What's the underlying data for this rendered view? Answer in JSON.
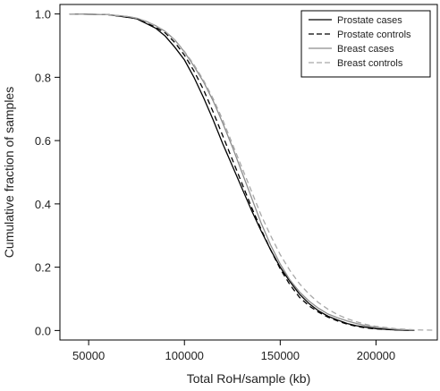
{
  "chart_data": {
    "type": "line",
    "xlabel": "Total RoH/sample (kb)",
    "ylabel": "Cumulative fraction of samples",
    "xlim": [
      35000,
      232000
    ],
    "ylim": [
      -0.03,
      1.03
    ],
    "x_ticks": [
      50000,
      100000,
      150000,
      200000
    ],
    "x_tick_labels": [
      "50000",
      "100000",
      "150000",
      "200000"
    ],
    "y_ticks": [
      0.0,
      0.2,
      0.4,
      0.6,
      0.8,
      1.0
    ],
    "y_tick_labels": [
      "0.0",
      "0.2",
      "0.4",
      "0.6",
      "0.8",
      "1.0"
    ],
    "grid": false,
    "legend_position": "top-right",
    "series": [
      {
        "name": "Prostate cases",
        "color": "#000000",
        "dash": "solid",
        "points": [
          [
            40000,
            1.0
          ],
          [
            60000,
            0.998
          ],
          [
            70000,
            0.99
          ],
          [
            75000,
            0.985
          ],
          [
            80000,
            0.97
          ],
          [
            85000,
            0.955
          ],
          [
            90000,
            0.93
          ],
          [
            95000,
            0.895
          ],
          [
            100000,
            0.855
          ],
          [
            105000,
            0.8
          ],
          [
            110000,
            0.735
          ],
          [
            115000,
            0.665
          ],
          [
            120000,
            0.59
          ],
          [
            125000,
            0.52
          ],
          [
            130000,
            0.45
          ],
          [
            135000,
            0.38
          ],
          [
            140000,
            0.315
          ],
          [
            145000,
            0.255
          ],
          [
            150000,
            0.2
          ],
          [
            155000,
            0.155
          ],
          [
            160000,
            0.115
          ],
          [
            165000,
            0.085
          ],
          [
            170000,
            0.062
          ],
          [
            175000,
            0.045
          ],
          [
            180000,
            0.033
          ],
          [
            185000,
            0.022
          ],
          [
            190000,
            0.015
          ],
          [
            195000,
            0.01
          ],
          [
            200000,
            0.006
          ],
          [
            210000,
            0.002
          ],
          [
            220000,
            0.0
          ]
        ]
      },
      {
        "name": "Prostate controls",
        "color": "#000000",
        "dash": "dashed",
        "points": [
          [
            40000,
            1.0
          ],
          [
            60000,
            0.998
          ],
          [
            70000,
            0.99
          ],
          [
            75000,
            0.985
          ],
          [
            80000,
            0.972
          ],
          [
            85000,
            0.958
          ],
          [
            90000,
            0.94
          ],
          [
            95000,
            0.91
          ],
          [
            100000,
            0.87
          ],
          [
            105000,
            0.82
          ],
          [
            110000,
            0.76
          ],
          [
            115000,
            0.69
          ],
          [
            120000,
            0.615
          ],
          [
            125000,
            0.54
          ],
          [
            130000,
            0.465
          ],
          [
            135000,
            0.39
          ],
          [
            140000,
            0.32
          ],
          [
            145000,
            0.255
          ],
          [
            150000,
            0.195
          ],
          [
            155000,
            0.145
          ],
          [
            160000,
            0.105
          ],
          [
            165000,
            0.078
          ],
          [
            170000,
            0.058
          ],
          [
            175000,
            0.042
          ],
          [
            180000,
            0.03
          ],
          [
            185000,
            0.02
          ],
          [
            190000,
            0.013
          ],
          [
            195000,
            0.008
          ],
          [
            200000,
            0.005
          ],
          [
            210000,
            0.002
          ],
          [
            220000,
            0.0
          ]
        ]
      },
      {
        "name": "Breast cases",
        "color": "#8c8c8c",
        "dash": "solid",
        "points": [
          [
            40000,
            1.0
          ],
          [
            60000,
            0.998
          ],
          [
            70000,
            0.992
          ],
          [
            75000,
            0.987
          ],
          [
            80000,
            0.977
          ],
          [
            85000,
            0.963
          ],
          [
            90000,
            0.945
          ],
          [
            95000,
            0.918
          ],
          [
            100000,
            0.88
          ],
          [
            105000,
            0.835
          ],
          [
            110000,
            0.785
          ],
          [
            115000,
            0.725
          ],
          [
            120000,
            0.655
          ],
          [
            125000,
            0.58
          ],
          [
            130000,
            0.5
          ],
          [
            135000,
            0.42
          ],
          [
            140000,
            0.34
          ],
          [
            145000,
            0.27
          ],
          [
            150000,
            0.21
          ],
          [
            155000,
            0.16
          ],
          [
            160000,
            0.122
          ],
          [
            165000,
            0.093
          ],
          [
            170000,
            0.07
          ],
          [
            175000,
            0.052
          ],
          [
            180000,
            0.04
          ],
          [
            185000,
            0.03
          ],
          [
            190000,
            0.022
          ],
          [
            195000,
            0.015
          ],
          [
            200000,
            0.01
          ],
          [
            210000,
            0.004
          ],
          [
            220000,
            0.001
          ]
        ]
      },
      {
        "name": "Breast controls",
        "color": "#a8a8a8",
        "dash": "dashed",
        "points": [
          [
            40000,
            1.0
          ],
          [
            60000,
            0.998
          ],
          [
            70000,
            0.992
          ],
          [
            75000,
            0.987
          ],
          [
            80000,
            0.977
          ],
          [
            85000,
            0.963
          ],
          [
            90000,
            0.945
          ],
          [
            95000,
            0.918
          ],
          [
            100000,
            0.882
          ],
          [
            105000,
            0.84
          ],
          [
            110000,
            0.79
          ],
          [
            115000,
            0.732
          ],
          [
            120000,
            0.665
          ],
          [
            125000,
            0.59
          ],
          [
            130000,
            0.515
          ],
          [
            135000,
            0.44
          ],
          [
            140000,
            0.365
          ],
          [
            145000,
            0.3
          ],
          [
            150000,
            0.24
          ],
          [
            155000,
            0.19
          ],
          [
            160000,
            0.148
          ],
          [
            165000,
            0.115
          ],
          [
            170000,
            0.088
          ],
          [
            175000,
            0.067
          ],
          [
            180000,
            0.05
          ],
          [
            185000,
            0.037
          ],
          [
            190000,
            0.027
          ],
          [
            195000,
            0.019
          ],
          [
            200000,
            0.013
          ],
          [
            210000,
            0.006
          ],
          [
            220000,
            0.002
          ],
          [
            230000,
            0.001
          ]
        ]
      }
    ]
  }
}
